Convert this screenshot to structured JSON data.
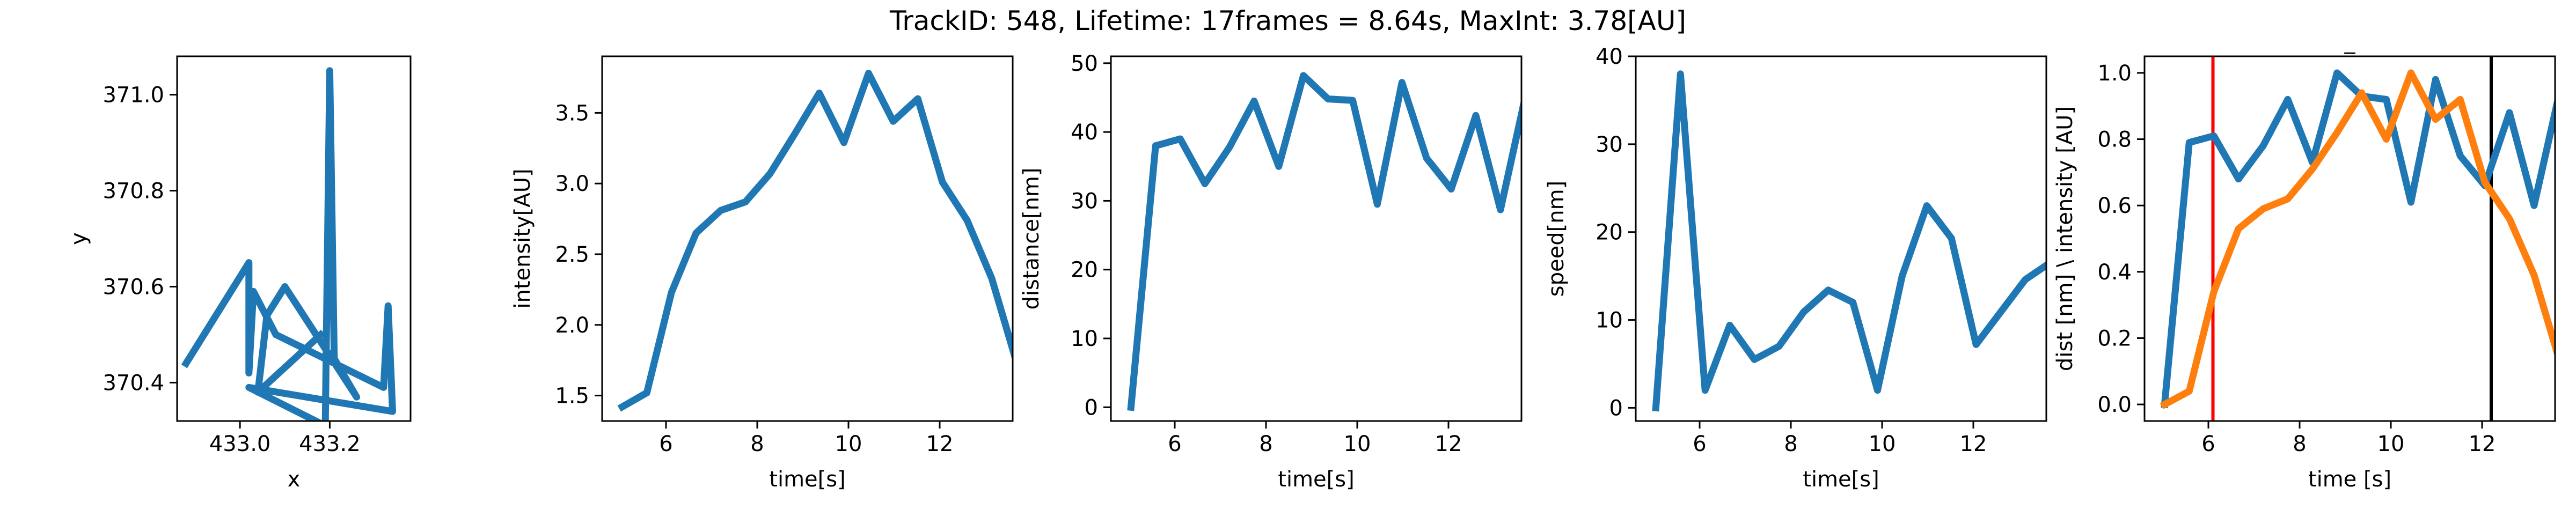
{
  "figure": {
    "title": "TrackID: 548, Lifetime: 17frames = 8.64s, MaxInt: 3.78[AU]",
    "line_color": "#1f77b4",
    "second_color": "#ff7f0e",
    "marker_start_color": "#ff0000",
    "marker_end_color": "#000000"
  },
  "chart_data": [
    {
      "type": "line",
      "title": "",
      "xlabel": "x",
      "ylabel": "y",
      "xlim": [
        432.86,
        433.38
      ],
      "ylim": [
        370.32,
        371.08
      ],
      "xticks": [
        433.0,
        433.2
      ],
      "xtick_labels": [
        "433.0",
        "433.2"
      ],
      "yticks": [
        370.4,
        370.6,
        370.8,
        371.0
      ],
      "ytick_labels": [
        "370.4",
        "370.6",
        "370.8",
        "371.0"
      ],
      "grid": false,
      "series": [
        {
          "x": [
            432.88,
            433.02,
            433.02,
            433.03,
            433.08,
            433.32,
            433.33,
            433.34,
            433.02,
            433.19,
            433.2,
            433.21,
            433.26,
            433.1,
            433.06,
            433.04,
            433.18
          ],
          "y": [
            370.44,
            370.65,
            370.42,
            370.59,
            370.5,
            370.39,
            370.56,
            370.34,
            370.39,
            370.31,
            371.05,
            370.45,
            370.37,
            370.6,
            370.54,
            370.38,
            370.5
          ]
        }
      ]
    },
    {
      "type": "line",
      "title": "",
      "xlabel": "time[s]",
      "ylabel": "intensity[AU]",
      "xlim": [
        4.6,
        13.6
      ],
      "ylim": [
        1.32,
        3.9
      ],
      "xticks": [
        6,
        8,
        10,
        12
      ],
      "xtick_labels": [
        "6",
        "8",
        "10",
        "12"
      ],
      "yticks": [
        1.5,
        2.0,
        2.5,
        3.0,
        3.5
      ],
      "ytick_labels": [
        "1.5",
        "2.0",
        "2.5",
        "3.0",
        "3.5"
      ],
      "grid": false,
      "series": [
        {
          "x": [
            5.04,
            5.58,
            6.12,
            6.66,
            7.2,
            7.74,
            8.28,
            8.82,
            9.36,
            9.9,
            10.44,
            10.98,
            11.52,
            12.06,
            12.6,
            13.14,
            13.68
          ],
          "y": [
            1.42,
            1.52,
            2.23,
            2.65,
            2.81,
            2.87,
            3.07,
            3.35,
            3.64,
            3.29,
            3.78,
            3.44,
            3.6,
            3.01,
            2.74,
            2.33,
            1.74
          ]
        }
      ]
    },
    {
      "type": "line",
      "title": "",
      "xlabel": "time[s]",
      "ylabel": "distance[nm]",
      "xlim": [
        4.6,
        13.6
      ],
      "ylim": [
        -2,
        51
      ],
      "xticks": [
        6,
        8,
        10,
        12
      ],
      "xtick_labels": [
        "6",
        "8",
        "10",
        "12"
      ],
      "yticks": [
        0,
        10,
        20,
        30,
        40,
        50
      ],
      "ytick_labels": [
        "0",
        "10",
        "20",
        "30",
        "40",
        "50"
      ],
      "grid": false,
      "series": [
        {
          "x": [
            5.04,
            5.58,
            6.12,
            6.66,
            7.2,
            7.74,
            8.28,
            8.82,
            9.36,
            9.9,
            10.44,
            10.98,
            11.52,
            12.06,
            12.6,
            13.14,
            13.68
          ],
          "y": [
            0,
            38,
            39,
            32.5,
            37.8,
            44.5,
            35,
            48.2,
            44.8,
            44.6,
            29.5,
            47.2,
            36.2,
            31.7,
            42.4,
            28.7,
            45
          ]
        }
      ]
    },
    {
      "type": "line",
      "title": "",
      "xlabel": "time[s]",
      "ylabel": "speed[nm]",
      "xlim": [
        4.6,
        13.6
      ],
      "ylim": [
        -1.5,
        40
      ],
      "xticks": [
        6,
        8,
        10,
        12
      ],
      "xtick_labels": [
        "6",
        "8",
        "10",
        "12"
      ],
      "yticks": [
        0,
        10,
        20,
        30,
        40
      ],
      "ytick_labels": [
        "0",
        "10",
        "20",
        "30",
        "40"
      ],
      "grid": false,
      "series": [
        {
          "x": [
            5.04,
            5.58,
            6.12,
            6.66,
            7.2,
            7.74,
            8.28,
            8.82,
            9.36,
            9.9,
            10.44,
            10.98,
            11.52,
            12.06,
            12.6,
            13.14,
            13.68
          ],
          "y": [
            0,
            38,
            2,
            9.4,
            5.5,
            7,
            10.9,
            13.4,
            12,
            2,
            15,
            23,
            19.3,
            7.2,
            10.9,
            14.6,
            16.5
          ]
        }
      ]
    },
    {
      "type": "line",
      "title": "_",
      "xlabel": "time [s]",
      "ylabel": "dist [nm] \\ intensity [AU]",
      "xlim": [
        4.6,
        13.6
      ],
      "ylim": [
        -0.05,
        1.05
      ],
      "xticks": [
        6,
        8,
        10,
        12
      ],
      "xtick_labels": [
        "6",
        "8",
        "10",
        "12"
      ],
      "yticks": [
        0.0,
        0.2,
        0.4,
        0.6,
        0.8,
        1.0
      ],
      "ytick_labels": [
        "0.0",
        "0.2",
        "0.4",
        "0.6",
        "0.8",
        "1.0"
      ],
      "grid": false,
      "vlines": [
        {
          "x": 6.1,
          "color": "#ff0000"
        },
        {
          "x": 12.2,
          "color": "#000000"
        }
      ],
      "series": [
        {
          "color": "#1f77b4",
          "x": [
            5.04,
            5.58,
            6.12,
            6.66,
            7.2,
            7.74,
            8.28,
            8.82,
            9.36,
            9.9,
            10.44,
            10.98,
            11.52,
            12.06,
            12.6,
            13.14,
            13.68
          ],
          "y": [
            0,
            0.79,
            0.81,
            0.68,
            0.78,
            0.92,
            0.73,
            1.0,
            0.93,
            0.92,
            0.61,
            0.98,
            0.75,
            0.66,
            0.88,
            0.6,
            0.93
          ]
        },
        {
          "color": "#ff7f0e",
          "x": [
            5.04,
            5.58,
            6.12,
            6.66,
            7.2,
            7.74,
            8.28,
            8.82,
            9.36,
            9.9,
            10.44,
            10.98,
            11.52,
            12.06,
            12.6,
            13.14,
            13.68
          ],
          "y": [
            0,
            0.04,
            0.34,
            0.53,
            0.59,
            0.62,
            0.71,
            0.82,
            0.94,
            0.8,
            1.0,
            0.86,
            0.92,
            0.67,
            0.56,
            0.39,
            0.14
          ]
        }
      ]
    }
  ]
}
